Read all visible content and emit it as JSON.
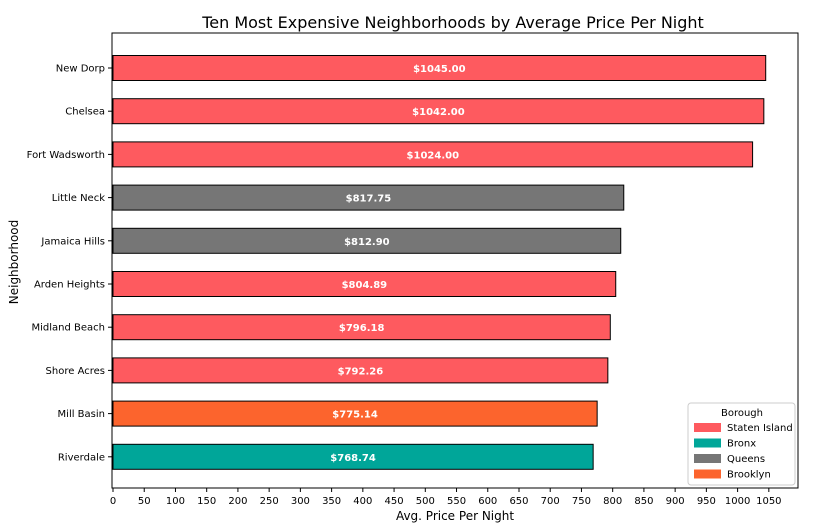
{
  "chart_data": {
    "type": "bar",
    "orientation": "horizontal",
    "title": "Ten Most Expensive Neighborhoods by Average Price Per Night",
    "xlabel": "Avg. Price Per Night",
    "ylabel": "Neighborhood",
    "xlim": [
      0,
      1100
    ],
    "xticks": [
      0,
      50,
      100,
      150,
      200,
      250,
      300,
      350,
      400,
      450,
      500,
      550,
      600,
      650,
      700,
      750,
      800,
      850,
      900,
      950,
      1000,
      1050
    ],
    "grid": false,
    "legend": {
      "title": "Borough",
      "placement": "bottom-right",
      "entries": [
        {
          "name": "Staten Island",
          "color": "#fe5a5f"
        },
        {
          "name": "Bronx",
          "color": "#00a699"
        },
        {
          "name": "Queens",
          "color": "#767676"
        },
        {
          "name": "Brooklyn",
          "color": "#fc642d"
        }
      ]
    },
    "bars": [
      {
        "category": "New Dorp",
        "value": 1045.0,
        "label": "$1045.00",
        "borough": "Staten Island"
      },
      {
        "category": "Chelsea",
        "value": 1042.0,
        "label": "$1042.00",
        "borough": "Staten Island"
      },
      {
        "category": "Fort Wadsworth",
        "value": 1024.0,
        "label": "$1024.00",
        "borough": "Staten Island"
      },
      {
        "category": "Little Neck",
        "value": 817.75,
        "label": "$817.75",
        "borough": "Queens"
      },
      {
        "category": "Jamaica Hills",
        "value": 812.9,
        "label": "$812.90",
        "borough": "Queens"
      },
      {
        "category": "Arden Heights",
        "value": 804.89,
        "label": "$804.89",
        "borough": "Staten Island"
      },
      {
        "category": "Midland Beach",
        "value": 796.18,
        "label": "$796.18",
        "borough": "Staten Island"
      },
      {
        "category": "Shore Acres",
        "value": 792.26,
        "label": "$792.26",
        "borough": "Staten Island"
      },
      {
        "category": "Mill Basin",
        "value": 775.14,
        "label": "$775.14",
        "borough": "Brooklyn"
      },
      {
        "category": "Riverdale",
        "value": 768.74,
        "label": "$768.74",
        "borough": "Bronx"
      }
    ]
  }
}
